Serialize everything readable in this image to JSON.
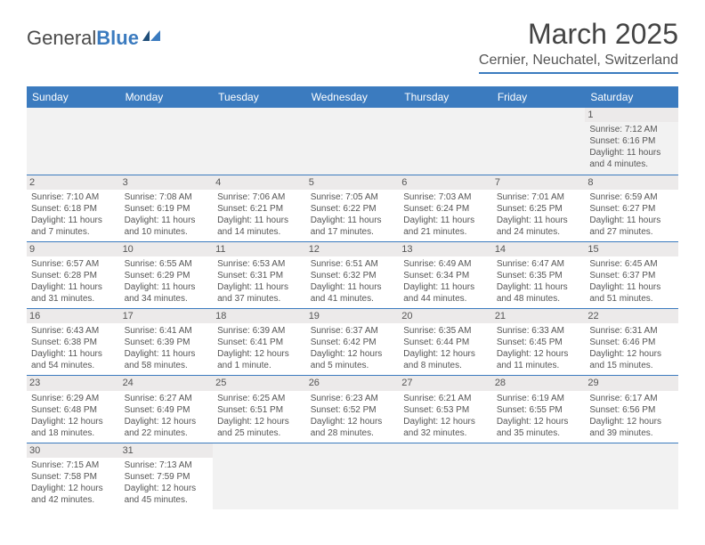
{
  "logo": {
    "text1": "General",
    "text2": "Blue"
  },
  "title": "March 2025",
  "location": "Cernier, Neuchatel, Switzerland",
  "day_headers": [
    "Sunday",
    "Monday",
    "Tuesday",
    "Wednesday",
    "Thursday",
    "Friday",
    "Saturday"
  ],
  "colors": {
    "header_bg": "#3b7bbf",
    "header_text": "#ffffff",
    "border": "#3b7bbf",
    "daynum_bg": "#eceaea",
    "empty_bg": "#f2f2f2",
    "text": "#555555"
  },
  "weeks": [
    [
      null,
      null,
      null,
      null,
      null,
      null,
      {
        "n": "1",
        "sunrise": "Sunrise: 7:12 AM",
        "sunset": "Sunset: 6:16 PM",
        "daylight": "Daylight: 11 hours and 4 minutes."
      }
    ],
    [
      {
        "n": "2",
        "sunrise": "Sunrise: 7:10 AM",
        "sunset": "Sunset: 6:18 PM",
        "daylight": "Daylight: 11 hours and 7 minutes."
      },
      {
        "n": "3",
        "sunrise": "Sunrise: 7:08 AM",
        "sunset": "Sunset: 6:19 PM",
        "daylight": "Daylight: 11 hours and 10 minutes."
      },
      {
        "n": "4",
        "sunrise": "Sunrise: 7:06 AM",
        "sunset": "Sunset: 6:21 PM",
        "daylight": "Daylight: 11 hours and 14 minutes."
      },
      {
        "n": "5",
        "sunrise": "Sunrise: 7:05 AM",
        "sunset": "Sunset: 6:22 PM",
        "daylight": "Daylight: 11 hours and 17 minutes."
      },
      {
        "n": "6",
        "sunrise": "Sunrise: 7:03 AM",
        "sunset": "Sunset: 6:24 PM",
        "daylight": "Daylight: 11 hours and 21 minutes."
      },
      {
        "n": "7",
        "sunrise": "Sunrise: 7:01 AM",
        "sunset": "Sunset: 6:25 PM",
        "daylight": "Daylight: 11 hours and 24 minutes."
      },
      {
        "n": "8",
        "sunrise": "Sunrise: 6:59 AM",
        "sunset": "Sunset: 6:27 PM",
        "daylight": "Daylight: 11 hours and 27 minutes."
      }
    ],
    [
      {
        "n": "9",
        "sunrise": "Sunrise: 6:57 AM",
        "sunset": "Sunset: 6:28 PM",
        "daylight": "Daylight: 11 hours and 31 minutes."
      },
      {
        "n": "10",
        "sunrise": "Sunrise: 6:55 AM",
        "sunset": "Sunset: 6:29 PM",
        "daylight": "Daylight: 11 hours and 34 minutes."
      },
      {
        "n": "11",
        "sunrise": "Sunrise: 6:53 AM",
        "sunset": "Sunset: 6:31 PM",
        "daylight": "Daylight: 11 hours and 37 minutes."
      },
      {
        "n": "12",
        "sunrise": "Sunrise: 6:51 AM",
        "sunset": "Sunset: 6:32 PM",
        "daylight": "Daylight: 11 hours and 41 minutes."
      },
      {
        "n": "13",
        "sunrise": "Sunrise: 6:49 AM",
        "sunset": "Sunset: 6:34 PM",
        "daylight": "Daylight: 11 hours and 44 minutes."
      },
      {
        "n": "14",
        "sunrise": "Sunrise: 6:47 AM",
        "sunset": "Sunset: 6:35 PM",
        "daylight": "Daylight: 11 hours and 48 minutes."
      },
      {
        "n": "15",
        "sunrise": "Sunrise: 6:45 AM",
        "sunset": "Sunset: 6:37 PM",
        "daylight": "Daylight: 11 hours and 51 minutes."
      }
    ],
    [
      {
        "n": "16",
        "sunrise": "Sunrise: 6:43 AM",
        "sunset": "Sunset: 6:38 PM",
        "daylight": "Daylight: 11 hours and 54 minutes."
      },
      {
        "n": "17",
        "sunrise": "Sunrise: 6:41 AM",
        "sunset": "Sunset: 6:39 PM",
        "daylight": "Daylight: 11 hours and 58 minutes."
      },
      {
        "n": "18",
        "sunrise": "Sunrise: 6:39 AM",
        "sunset": "Sunset: 6:41 PM",
        "daylight": "Daylight: 12 hours and 1 minute."
      },
      {
        "n": "19",
        "sunrise": "Sunrise: 6:37 AM",
        "sunset": "Sunset: 6:42 PM",
        "daylight": "Daylight: 12 hours and 5 minutes."
      },
      {
        "n": "20",
        "sunrise": "Sunrise: 6:35 AM",
        "sunset": "Sunset: 6:44 PM",
        "daylight": "Daylight: 12 hours and 8 minutes."
      },
      {
        "n": "21",
        "sunrise": "Sunrise: 6:33 AM",
        "sunset": "Sunset: 6:45 PM",
        "daylight": "Daylight: 12 hours and 11 minutes."
      },
      {
        "n": "22",
        "sunrise": "Sunrise: 6:31 AM",
        "sunset": "Sunset: 6:46 PM",
        "daylight": "Daylight: 12 hours and 15 minutes."
      }
    ],
    [
      {
        "n": "23",
        "sunrise": "Sunrise: 6:29 AM",
        "sunset": "Sunset: 6:48 PM",
        "daylight": "Daylight: 12 hours and 18 minutes."
      },
      {
        "n": "24",
        "sunrise": "Sunrise: 6:27 AM",
        "sunset": "Sunset: 6:49 PM",
        "daylight": "Daylight: 12 hours and 22 minutes."
      },
      {
        "n": "25",
        "sunrise": "Sunrise: 6:25 AM",
        "sunset": "Sunset: 6:51 PM",
        "daylight": "Daylight: 12 hours and 25 minutes."
      },
      {
        "n": "26",
        "sunrise": "Sunrise: 6:23 AM",
        "sunset": "Sunset: 6:52 PM",
        "daylight": "Daylight: 12 hours and 28 minutes."
      },
      {
        "n": "27",
        "sunrise": "Sunrise: 6:21 AM",
        "sunset": "Sunset: 6:53 PM",
        "daylight": "Daylight: 12 hours and 32 minutes."
      },
      {
        "n": "28",
        "sunrise": "Sunrise: 6:19 AM",
        "sunset": "Sunset: 6:55 PM",
        "daylight": "Daylight: 12 hours and 35 minutes."
      },
      {
        "n": "29",
        "sunrise": "Sunrise: 6:17 AM",
        "sunset": "Sunset: 6:56 PM",
        "daylight": "Daylight: 12 hours and 39 minutes."
      }
    ],
    [
      {
        "n": "30",
        "sunrise": "Sunrise: 7:15 AM",
        "sunset": "Sunset: 7:58 PM",
        "daylight": "Daylight: 12 hours and 42 minutes."
      },
      {
        "n": "31",
        "sunrise": "Sunrise: 7:13 AM",
        "sunset": "Sunset: 7:59 PM",
        "daylight": "Daylight: 12 hours and 45 minutes."
      },
      null,
      null,
      null,
      null,
      null
    ]
  ]
}
